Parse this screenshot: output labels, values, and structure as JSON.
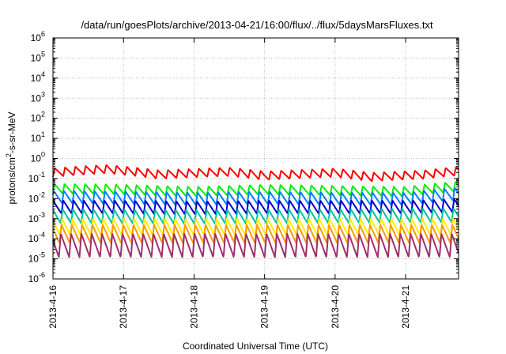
{
  "chart_data": {
    "type": "line",
    "title": "/data/run/goesPlots/archive/2013-04-21/16:00/flux/../flux/5daysMarsFluxes.txt",
    "xlabel": "Coordinated Universal Time (UTC)",
    "ylabel": {
      "prefix": "protons/cm",
      "sup": "2",
      "suffix": "-s-sr-MeV"
    },
    "yscale": "log",
    "grid": true,
    "legend": "none",
    "xlim": [
      "2013-04-16T00:00",
      "2013-04-21T18:00"
    ],
    "ylim": [
      1e-06,
      1000000
    ],
    "x_ticks": [
      {
        "date": "2013-04-16",
        "label": "2013-4-16"
      },
      {
        "date": "2013-04-17",
        "label": "2013-4-17"
      },
      {
        "date": "2013-04-18",
        "label": "2013-4-18"
      },
      {
        "date": "2013-04-19",
        "label": "2013-4-19"
      },
      {
        "date": "2013-04-20",
        "label": "2013-4-20"
      },
      {
        "date": "2013-04-21",
        "label": "2013-4-21"
      }
    ],
    "y_ticks": [
      {
        "value": 1e-06,
        "exp": "-6"
      },
      {
        "value": 1e-05,
        "exp": "-5"
      },
      {
        "value": 0.0001,
        "exp": "-4"
      },
      {
        "value": 0.001,
        "exp": "-3"
      },
      {
        "value": 0.01,
        "exp": "-2"
      },
      {
        "value": 0.1,
        "exp": "-1"
      },
      {
        "value": 1,
        "exp": "0"
      },
      {
        "value": 10,
        "exp": "1"
      },
      {
        "value": 100,
        "exp": "2"
      },
      {
        "value": 1000,
        "exp": "3"
      },
      {
        "value": 10000,
        "exp": "4"
      },
      {
        "value": 100000,
        "exp": "5"
      },
      {
        "value": 1000000,
        "exp": "6"
      }
    ],
    "tick_base": "10",
    "series": [
      {
        "color": "#ff0000",
        "low": 0.12,
        "high": 0.32,
        "period_hours": 3.5,
        "trend": [
          [
            "2013-04-16T00:00",
            1.0
          ],
          [
            "2013-04-16T18:00",
            1.5
          ],
          [
            "2013-04-17T12:00",
            0.8
          ],
          [
            "2013-04-18T12:00",
            1.1
          ],
          [
            "2013-04-19T00:00",
            0.7
          ],
          [
            "2013-04-20T00:00",
            1.0
          ],
          [
            "2013-04-20T12:00",
            0.6
          ],
          [
            "2013-04-21T06:00",
            0.8
          ],
          [
            "2013-04-21T18:00",
            1.2
          ]
        ]
      },
      {
        "color": "#00ee00",
        "low": 0.018,
        "high": 0.055,
        "period_hours": 3.5,
        "trend": [
          [
            "2013-04-16T00:00",
            1.0
          ],
          [
            "2013-04-17T00:00",
            0.9
          ],
          [
            "2013-04-18T00:00",
            0.7
          ],
          [
            "2013-04-19T00:00",
            0.9
          ],
          [
            "2013-04-20T00:00",
            0.8
          ],
          [
            "2013-04-21T00:00",
            0.7
          ],
          [
            "2013-04-21T18:00",
            1.3
          ]
        ]
      },
      {
        "color": "#0080ff",
        "low": 0.006,
        "high": 0.025,
        "period_hours": 3.5,
        "trend": [
          [
            "2013-04-16T00:00",
            1.0
          ],
          [
            "2013-04-17T00:00",
            0.9
          ],
          [
            "2013-04-18T00:00",
            0.8
          ],
          [
            "2013-04-19T00:00",
            0.9
          ],
          [
            "2013-04-20T00:00",
            0.8
          ],
          [
            "2013-04-21T00:00",
            0.8
          ],
          [
            "2013-04-21T18:00",
            1.4
          ]
        ]
      },
      {
        "color": "#0000cc",
        "low": 0.0018,
        "high": 0.008,
        "period_hours": 3.5,
        "trend": [
          [
            "2013-04-16T00:00",
            1.0
          ],
          [
            "2013-04-17T00:00",
            1.0
          ],
          [
            "2013-04-18T00:00",
            0.9
          ],
          [
            "2013-04-19T00:00",
            1.0
          ],
          [
            "2013-04-20T00:00",
            1.0
          ],
          [
            "2013-04-21T00:00",
            1.0
          ],
          [
            "2013-04-21T18:00",
            1.2
          ]
        ]
      },
      {
        "color": "#00c0a0",
        "low": 0.0006,
        "high": 0.003,
        "period_hours": 3.5,
        "trend": [
          [
            "2013-04-16T00:00",
            1.0
          ],
          [
            "2013-04-18T00:00",
            0.9
          ],
          [
            "2013-04-20T00:00",
            1.0
          ],
          [
            "2013-04-21T18:00",
            1.1
          ]
        ]
      },
      {
        "color": "#ffee00",
        "low": 0.00015,
        "high": 0.001,
        "period_hours": 3.5,
        "trend": [
          [
            "2013-04-16T00:00",
            1.0
          ],
          [
            "2013-04-21T18:00",
            1.0
          ]
        ]
      },
      {
        "color": "#ff9900",
        "low": 6e-05,
        "high": 0.0005,
        "period_hours": 3.5,
        "trend": [
          [
            "2013-04-16T00:00",
            1.0
          ],
          [
            "2013-04-21T18:00",
            1.0
          ]
        ]
      },
      {
        "color": "#a0306a",
        "low": 1.2e-05,
        "high": 0.00018,
        "period_hours": 3.5,
        "trend": [
          [
            "2013-04-16T00:00",
            1.0
          ],
          [
            "2013-04-21T18:00",
            1.0
          ]
        ]
      }
    ]
  }
}
